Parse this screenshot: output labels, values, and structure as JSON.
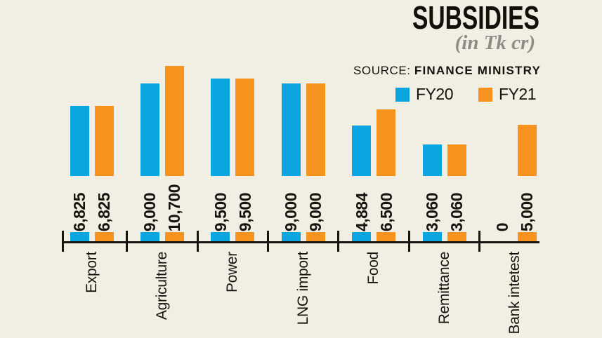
{
  "title": "SUBSIDIES",
  "subtitle": "(in Tk cr)",
  "source": {
    "label": "SOURCE:",
    "name": "FINANCE MINISTRY"
  },
  "legend": [
    {
      "label": "FY20",
      "color": "#0ba6e0"
    },
    {
      "label": "FY21",
      "color": "#f6921e"
    }
  ],
  "colors": {
    "background": "#f1eee4",
    "axis": "#15130e",
    "text": "#15130e",
    "subtitle_gray": "#8d8c87",
    "fy20_blue": "#0ba6e0",
    "fy21_orange": "#f6921e"
  },
  "chart_data": {
    "type": "bar",
    "title": "SUBSIDIES",
    "subtitle": "(in Tk cr)",
    "unit": "Tk cr",
    "source": "FINANCE MINISTRY",
    "categories": [
      "Export",
      "Agriculture",
      "Power",
      "LNG import",
      "Food",
      "Remittance",
      "Bank intetest"
    ],
    "series": [
      {
        "name": "FY20",
        "color": "#0ba6e0",
        "values": [
          6825,
          9000,
          9500,
          9000,
          4884,
          3060,
          0
        ]
      },
      {
        "name": "FY21",
        "color": "#f6921e",
        "values": [
          6825,
          10700,
          9500,
          9000,
          6500,
          3060,
          5000
        ]
      }
    ],
    "value_labels": [
      [
        "6,825",
        "9,000",
        "9,500",
        "9,000",
        "4,884",
        "3,060",
        "0"
      ],
      [
        "6,825",
        "10,700",
        "9,500",
        "9,000",
        "6,500",
        "3,060",
        "5,000"
      ]
    ],
    "ylim": [
      0,
      10700
    ],
    "grid": false,
    "legend_position": "top-right",
    "bar_label_rotation": "vertical-bottom-to-top",
    "category_label_rotation": "vertical-bottom-to-top"
  }
}
